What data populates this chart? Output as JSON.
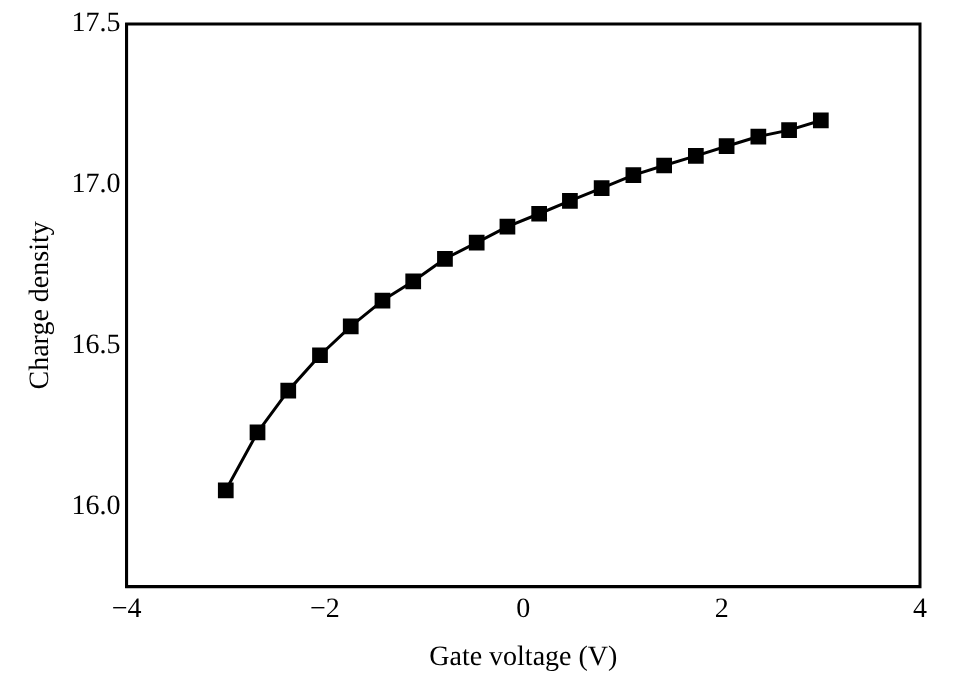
{
  "chart_data": {
    "type": "line",
    "xlabel": "Gate voltage (V)",
    "ylabel": "Charge density",
    "x": [
      -3,
      -2.68,
      -2.37,
      -2.05,
      -1.74,
      -1.42,
      -1.11,
      -0.79,
      -0.47,
      -0.16,
      0.16,
      0.47,
      0.79,
      1.11,
      1.42,
      1.74,
      2.05,
      2.37,
      2.68,
      3
    ],
    "series": [
      {
        "color": "#000000",
        "values": [
          16.05,
          16.23,
          16.36,
          16.47,
          16.56,
          16.64,
          16.7,
          16.77,
          16.82,
          16.87,
          16.91,
          16.95,
          16.99,
          17.03,
          17.06,
          17.09,
          17.12,
          17.15,
          17.17,
          17.2
        ]
      }
    ],
    "xlim": [
      -4,
      4
    ],
    "xticks": [
      -4,
      -2,
      0,
      2,
      4
    ],
    "ylim": [
      15.75,
      17.5
    ],
    "yticks": [
      {
        "value": 16,
        "label": "16.0"
      },
      16.5,
      {
        "value": 17,
        "label": "17.0"
      },
      17.5
    ],
    "grid": false,
    "legend": false,
    "marker": "square",
    "line_style": "solid"
  }
}
